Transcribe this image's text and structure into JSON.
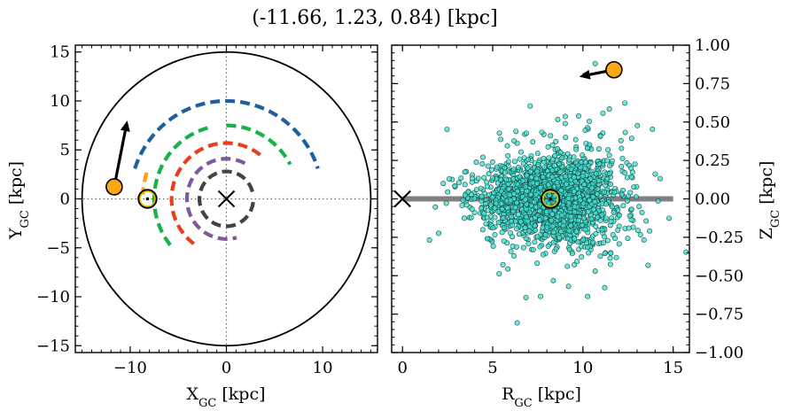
{
  "title": "(-11.66, 1.23, 0.84) [kpc]",
  "chart_data": [
    {
      "panel": "left",
      "type": "line",
      "xlabel": "X",
      "xlabel_sub": "GC",
      "xlabel_unit": " [kpc]",
      "ylabel": "Y",
      "ylabel_sub": "GC",
      "ylabel_unit": " [kpc]",
      "xlim": [
        -15.7,
        15.7
      ],
      "ylim": [
        -15.7,
        15.7
      ],
      "xticks": [
        -10,
        0,
        10
      ],
      "xtick_labels": [
        "−10",
        "0",
        "10"
      ],
      "yticks": [
        -15,
        -10,
        -5,
        0,
        5,
        10,
        15
      ],
      "ytick_labels": [
        "−15",
        "−10",
        "−5",
        "0",
        "5",
        "10",
        "15"
      ],
      "grid": false,
      "boundary_circle_radius": 15,
      "arcs": [
        {
          "color": "#1f5fa0",
          "radius": 10.0,
          "theta_start": 162,
          "theta_end": 18
        },
        {
          "color": "#18b14a",
          "radius": 7.5,
          "theta_start": 90,
          "theta_end": 28
        },
        {
          "color": "#18b14a",
          "radius": 7.5,
          "theta_start": 105,
          "theta_end": 223
        },
        {
          "color": "#e8401e",
          "radius": 5.7,
          "theta_start": 52,
          "theta_end": 237
        },
        {
          "color": "#7e5a9a",
          "radius": 4.1,
          "theta_start": 62,
          "theta_end": 285
        },
        {
          "color": "#434343",
          "radius": 2.8,
          "theta_start": 15,
          "theta_end": 355
        },
        {
          "color": "#ff9e1b",
          "radius": 8.7,
          "theta_start": 162,
          "theta_end": 177
        }
      ],
      "markers": {
        "galactic_center": {
          "x": 0,
          "y": 0,
          "marker": "x",
          "color": "#000000"
        },
        "sun": {
          "x": -8.2,
          "y": 0.0,
          "marker": "sun",
          "color": "#e0c000"
        },
        "object": {
          "x": -11.66,
          "y": 1.23,
          "color": "#ffa614",
          "edge": "#000000"
        }
      },
      "velocity_arrow": {
        "x0": -11.66,
        "y0": 1.23,
        "x1": -10.3,
        "y1": 8.0,
        "color": "#000000"
      }
    },
    {
      "panel": "right",
      "type": "scatter",
      "xlabel": "R",
      "xlabel_sub": "GC",
      "xlabel_unit": " [kpc]",
      "ylabel": "Z",
      "ylabel_sub": "GC",
      "ylabel_unit": " [kpc]",
      "xlim": [
        -0.6,
        15.9
      ],
      "ylim": [
        -1.0,
        1.0
      ],
      "xticks": [
        0,
        5,
        10,
        15
      ],
      "xtick_labels": [
        "0",
        "5",
        "10",
        "15"
      ],
      "yticks": [
        -1.0,
        -0.75,
        -0.5,
        -0.25,
        0.0,
        0.25,
        0.5,
        0.75,
        1.0
      ],
      "ytick_labels": [
        "−1.00",
        "−0.75",
        "−0.50",
        "−0.25",
        "0.00",
        "0.25",
        "0.50",
        "0.75",
        "1.00"
      ],
      "grid": false,
      "disk_line": {
        "x": [
          0,
          15
        ],
        "y": 0.0,
        "color": "#808080"
      },
      "points": {
        "count": 2200,
        "center_r": 8.2,
        "r_std": 2.1,
        "z_std": 0.11,
        "color": "#40e0d0",
        "edge": "#1a4a45"
      },
      "markers": {
        "galactic_center": {
          "x": 0,
          "y": 0,
          "marker": "x",
          "color": "#000000"
        },
        "sun": {
          "x": 8.2,
          "y": 0.0,
          "marker": "sun",
          "color": "#e0c000"
        },
        "object": {
          "x": 11.72,
          "y": 0.84,
          "color": "#ffa614",
          "edge": "#000000"
        }
      },
      "velocity_arrow": {
        "x0": 11.72,
        "y0": 0.84,
        "x1": 9.8,
        "y1": 0.795,
        "color": "#000000"
      }
    }
  ]
}
